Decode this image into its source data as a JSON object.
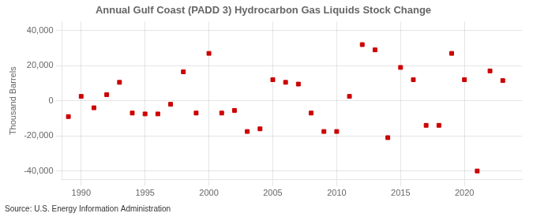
{
  "chart_data": {
    "type": "scatter",
    "title": "Annual Gulf Coast (PADD 3) Hydrocarbon Gas Liquids Stock Change",
    "y_label": "Thousand Barrels",
    "annotation": "Source: U.S. Energy Information Administration",
    "x": [
      1989,
      1990,
      1991,
      1992,
      1993,
      1994,
      1995,
      1996,
      1997,
      1998,
      1999,
      2000,
      2001,
      2002,
      2003,
      2004,
      2005,
      2006,
      2007,
      2008,
      2009,
      2010,
      2011,
      2012,
      2013,
      2014,
      2015,
      2016,
      2017,
      2018,
      2019,
      2020,
      2021,
      2022,
      2023
    ],
    "values": [
      -9000,
      2500,
      -4000,
      3500,
      10500,
      -7000,
      -7500,
      -7500,
      -2000,
      16500,
      -7000,
      27000,
      -7000,
      -5500,
      -17500,
      -16000,
      12000,
      10500,
      9500,
      -7000,
      -17500,
      -17500,
      2500,
      32000,
      29000,
      -21000,
      19000,
      12000,
      -14000,
      -14000,
      27000,
      12000,
      -40000,
      17000,
      11500
    ],
    "color": "#cc0000",
    "marker": "square",
    "xlim": [
      1988.5,
      2024.5
    ],
    "xticks": [
      1990,
      1995,
      2000,
      2005,
      2010,
      2015,
      2020
    ],
    "ylim": [
      -45000,
      45000
    ],
    "yticks": [
      {
        "value": -40000,
        "label": "-40,000"
      },
      {
        "value": -20000,
        "label": "-20,000"
      },
      {
        "value": 0,
        "label": "0"
      },
      {
        "value": 20000,
        "label": "20,000"
      },
      {
        "value": 40000,
        "label": "40,000"
      }
    ],
    "grid": true
  }
}
